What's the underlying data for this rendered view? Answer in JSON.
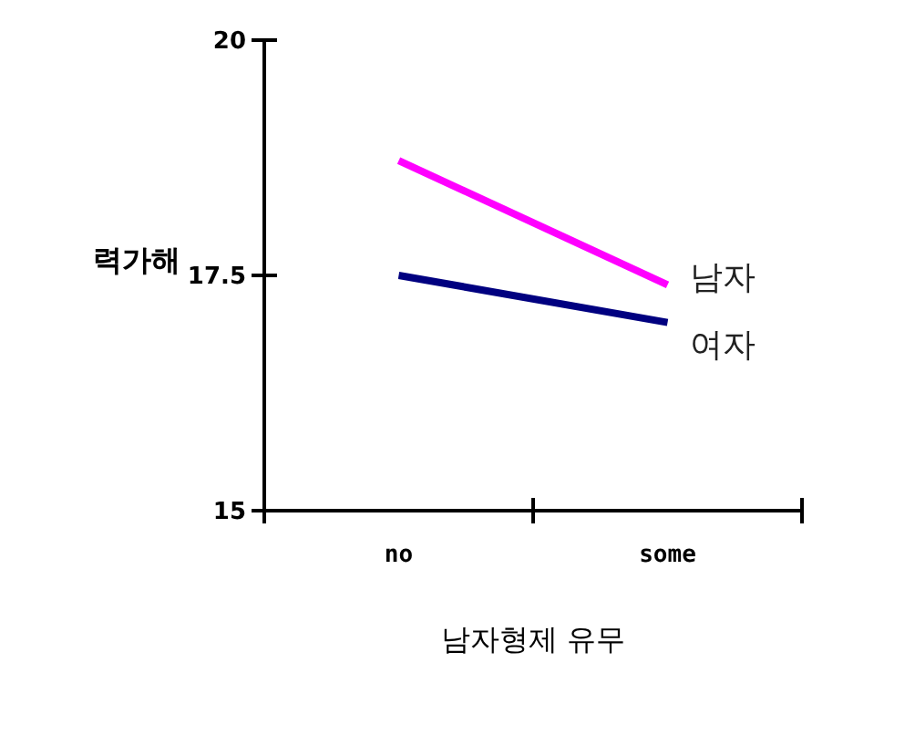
{
  "chart_data": {
    "type": "line",
    "xlabel": "남자형제 유무",
    "ylabel": "력가해",
    "categories": [
      "no",
      "some"
    ],
    "ylim": [
      15,
      20
    ],
    "yticks": [
      15,
      17.5,
      20
    ],
    "grid": false,
    "legend": false,
    "marker": "none",
    "line_style": "solid",
    "series": [
      {
        "name": "남자",
        "color": "#ff00ff",
        "values": [
          18.72,
          17.4
        ]
      },
      {
        "name": "여자",
        "color": "#000080",
        "values": [
          17.5,
          17.0
        ]
      }
    ]
  }
}
